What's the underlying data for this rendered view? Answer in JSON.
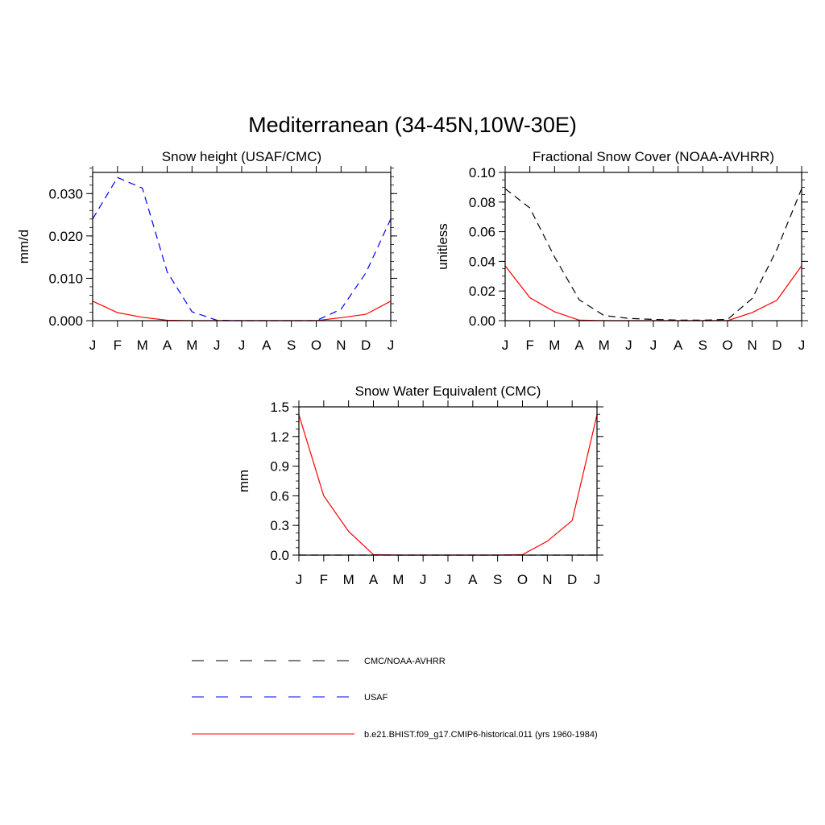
{
  "figure": {
    "title": "Mediterranean (34-45N,10W-30E)"
  },
  "months": [
    "J",
    "F",
    "M",
    "A",
    "M",
    "J",
    "J",
    "A",
    "S",
    "O",
    "N",
    "D",
    "J"
  ],
  "legend": [
    {
      "label": "CMC/NOAA-AVHRR",
      "color": "#000000",
      "style": "dashed"
    },
    {
      "label": "USAF",
      "color": "#0000ff",
      "style": "dashed"
    },
    {
      "label": "b.e21.BHIST.f09_g17.CMIP6-historical.011 (yrs 1960-1984)",
      "color": "#ff0000",
      "style": "solid"
    }
  ],
  "chart_data": [
    {
      "type": "line",
      "title": "Snow height (USAF/CMC)",
      "ylabel": "mm/d",
      "ylim": [
        0,
        0.035
      ],
      "yticks": [
        "0.000",
        "0.010",
        "0.020",
        "0.030"
      ],
      "ytick_values": [
        0,
        0.01,
        0.02,
        0.03
      ],
      "yminor": 0.002,
      "series": [
        {
          "name": "USAF",
          "color": "#0000ff",
          "style": "dashed",
          "values": [
            0.024,
            0.0338,
            0.0313,
            0.0115,
            0.0021,
            0.0001,
            0,
            0,
            0,
            0,
            0.0027,
            0.0113,
            0.024
          ]
        },
        {
          "name": "b.e21.BHIST.f09_g17.CMIP6-historical.011 (yrs 1960-1984)",
          "color": "#ff0000",
          "style": "solid",
          "values": [
            0.0046,
            0.0019,
            0.0008,
            0.0001,
            0,
            0,
            0,
            0,
            0,
            0,
            0.0007,
            0.0015,
            0.0046
          ]
        }
      ]
    },
    {
      "type": "line",
      "title": "Fractional Snow Cover (NOAA-AVHRR)",
      "ylabel": "unitless",
      "ylim": [
        0,
        0.1
      ],
      "yticks": [
        "0.00",
        "0.02",
        "0.04",
        "0.06",
        "0.08",
        "0.10"
      ],
      "ytick_values": [
        0,
        0.02,
        0.04,
        0.06,
        0.08,
        0.1
      ],
      "yminor": 0.005,
      "series": [
        {
          "name": "CMC/NOAA-AVHRR",
          "color": "#000000",
          "style": "dashed",
          "values": [
            0.089,
            0.076,
            0.043,
            0.014,
            0.0035,
            0.0015,
            0.0008,
            0.0004,
            0.0003,
            0.0008,
            0.015,
            0.048,
            0.089
          ]
        },
        {
          "name": "b.e21.BHIST.f09_g17.CMIP6-historical.011 (yrs 1960-1984)",
          "color": "#ff0000",
          "style": "solid",
          "values": [
            0.037,
            0.0155,
            0.006,
            0.0003,
            0,
            0,
            0,
            0,
            0,
            0,
            0.0055,
            0.0138,
            0.037
          ]
        }
      ]
    },
    {
      "type": "line",
      "title": "Snow Water Equivalent (CMC)",
      "ylabel": "mm",
      "ylim": [
        0,
        1.5
      ],
      "yticks": [
        "0.0",
        "0.3",
        "0.6",
        "0.9",
        "1.2",
        "1.5"
      ],
      "ytick_values": [
        0,
        0.3,
        0.6,
        0.9,
        1.2,
        1.5
      ],
      "yminor": 0.075,
      "series": [
        {
          "name": "CMC/NOAA-AVHRR",
          "color": "#000000",
          "style": "dashed",
          "values": [
            0,
            0,
            0,
            0,
            0,
            0,
            0,
            0,
            0,
            0,
            0,
            0,
            0
          ]
        },
        {
          "name": "b.e21.BHIST.f09_g17.CMIP6-historical.011 (yrs 1960-1984)",
          "color": "#ff0000",
          "style": "solid",
          "values": [
            1.42,
            0.6,
            0.24,
            0.005,
            0,
            0,
            0,
            0,
            0,
            0.005,
            0.14,
            0.35,
            1.42
          ]
        }
      ]
    }
  ]
}
